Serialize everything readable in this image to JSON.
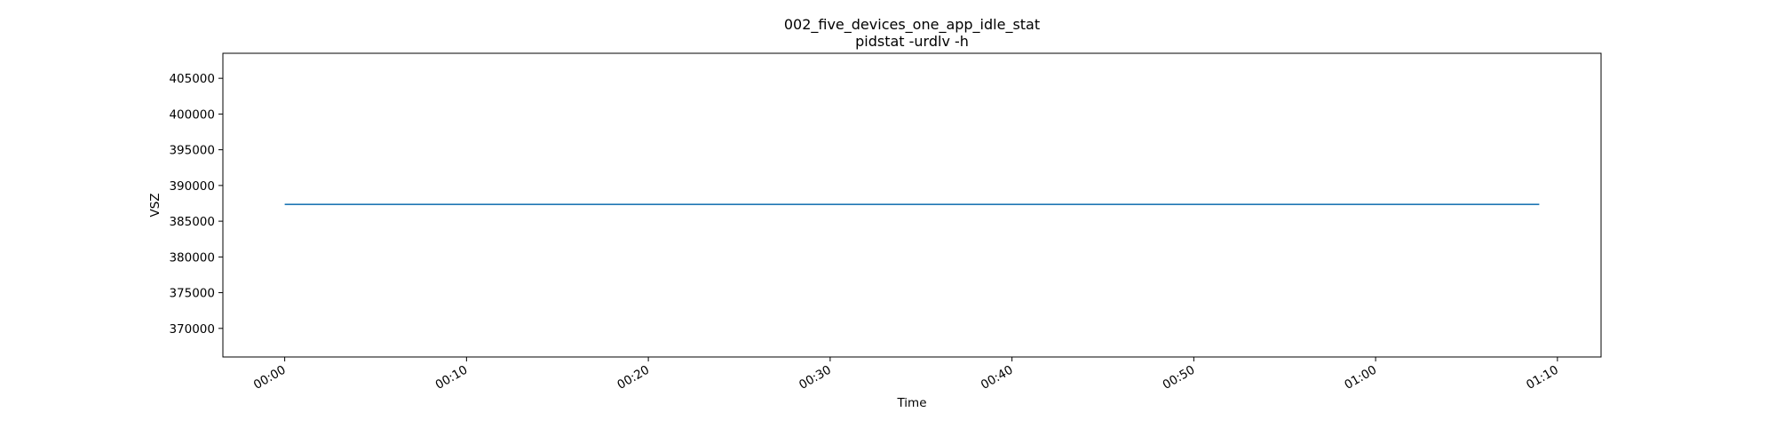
{
  "chart_data": {
    "type": "line",
    "title": "002_five_devices_one_app_idle_stat",
    "subtitle": "pidstat -urdlv -h",
    "xlabel": "Time",
    "ylabel": "VSZ",
    "x_tick_labels": [
      "00:00",
      "00:10",
      "00:20",
      "00:30",
      "00:40",
      "00:50",
      "01:00",
      "01:10"
    ],
    "x_tick_values_min": [
      0,
      10,
      20,
      30,
      40,
      50,
      60,
      70
    ],
    "xlim_min": [
      -3.4,
      72.4
    ],
    "y_ticks": [
      370000,
      375000,
      380000,
      385000,
      390000,
      395000,
      400000,
      405000
    ],
    "ylim": [
      366000,
      408500
    ],
    "grid": false,
    "series": [
      {
        "color": "#1f77b4",
        "x_min": [
          0,
          69
        ],
        "values": [
          387350,
          387350
        ]
      }
    ]
  }
}
